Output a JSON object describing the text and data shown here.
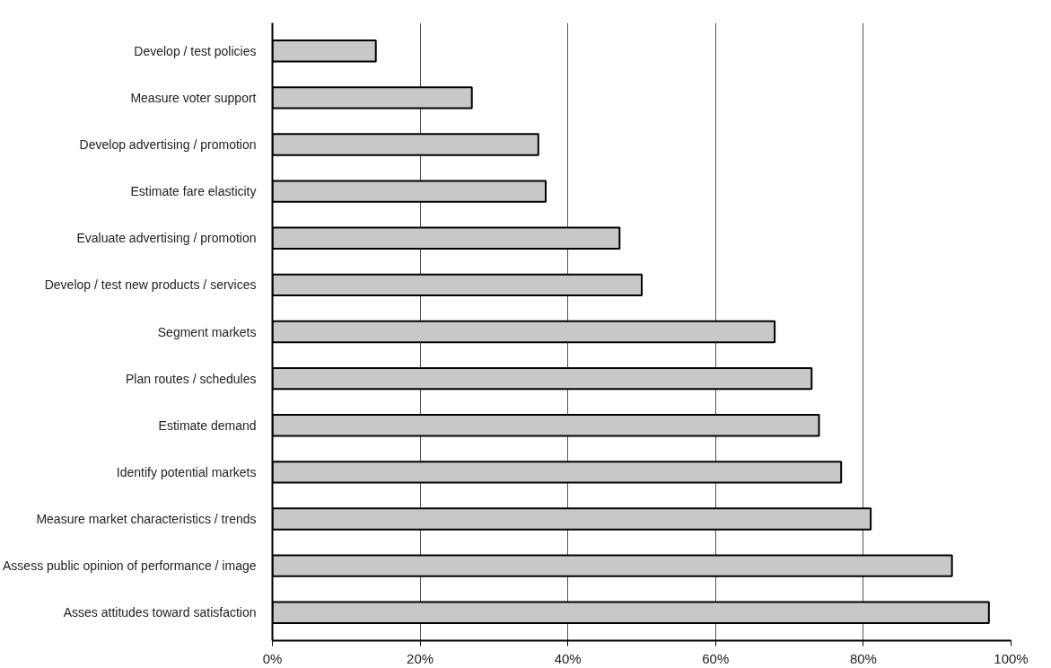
{
  "chart_data": {
    "type": "bar",
    "orientation": "horizontal",
    "categories": [
      "Develop / test policies",
      "Measure voter support",
      "Develop advertising / promotion",
      "Estimate fare elasticity",
      "Evaluate advertising / promotion",
      "Develop / test new products / services",
      "Segment markets",
      "Plan routes / schedules",
      "Estimate demand",
      "Identify potential markets",
      "Measure market characteristics / trends",
      "Assess public opinion of performance / image",
      "Asses attitudes toward satisfaction"
    ],
    "values": [
      14,
      27,
      36,
      37,
      47,
      50,
      68,
      73,
      74,
      77,
      81,
      92,
      97
    ],
    "color": "#c8c8c8",
    "xlim": [
      0,
      100
    ],
    "xticks": [
      {
        "value": 0,
        "label": "0%"
      },
      {
        "value": 20,
        "label": "20%"
      },
      {
        "value": 40,
        "label": "40%"
      },
      {
        "value": 60,
        "label": "60%"
      },
      {
        "value": 80,
        "label": "80%"
      },
      {
        "value": 100,
        "label": "100%"
      }
    ],
    "grid": "x"
  }
}
